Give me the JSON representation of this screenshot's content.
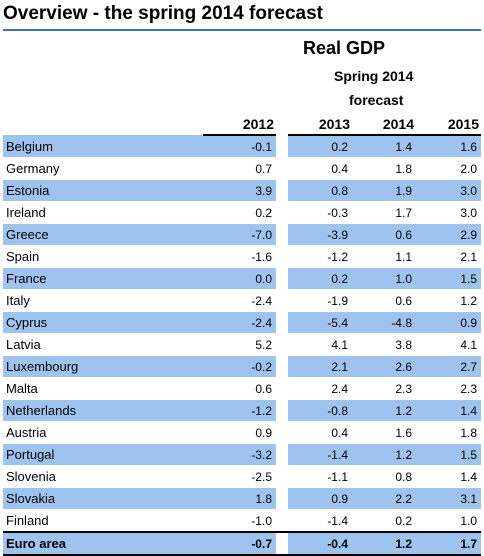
{
  "title": "Overview - the spring 2014 forecast",
  "section_title": "Real GDP",
  "forecast_label_line1": "Spring 2014",
  "forecast_label_line2": "forecast",
  "columns": [
    "2012",
    "2013",
    "2014",
    "2015"
  ],
  "colors": {
    "row_shade": "#9ec3ef",
    "title_rule": "#3f6fb5"
  },
  "rows": [
    {
      "country": "Belgium",
      "values": [
        "-0.1",
        "0.2",
        "1.4",
        "1.6"
      ],
      "shaded": true
    },
    {
      "country": "Germany",
      "values": [
        "0.7",
        "0.4",
        "1.8",
        "2.0"
      ],
      "shaded": false
    },
    {
      "country": "Estonia",
      "values": [
        "3.9",
        "0.8",
        "1.9",
        "3.0"
      ],
      "shaded": true
    },
    {
      "country": "Ireland",
      "values": [
        "0.2",
        "-0.3",
        "1.7",
        "3.0"
      ],
      "shaded": false
    },
    {
      "country": "Greece",
      "values": [
        "-7.0",
        "-3.9",
        "0.6",
        "2.9"
      ],
      "shaded": true
    },
    {
      "country": "Spain",
      "values": [
        "-1.6",
        "-1.2",
        "1.1",
        "2.1"
      ],
      "shaded": false
    },
    {
      "country": "France",
      "values": [
        "0.0",
        "0.2",
        "1.0",
        "1.5"
      ],
      "shaded": true
    },
    {
      "country": "Italy",
      "values": [
        "-2.4",
        "-1.9",
        "0.6",
        "1.2"
      ],
      "shaded": false
    },
    {
      "country": "Cyprus",
      "values": [
        "-2.4",
        "-5.4",
        "-4.8",
        "0.9"
      ],
      "shaded": true
    },
    {
      "country": "Latvia",
      "values": [
        "5.2",
        "4.1",
        "3.8",
        "4.1"
      ],
      "shaded": false
    },
    {
      "country": "Luxembourg",
      "values": [
        "-0.2",
        "2.1",
        "2.6",
        "2.7"
      ],
      "shaded": true
    },
    {
      "country": "Malta",
      "values": [
        "0.6",
        "2.4",
        "2.3",
        "2.3"
      ],
      "shaded": false
    },
    {
      "country": "Netherlands",
      "values": [
        "-1.2",
        "-0.8",
        "1.2",
        "1.4"
      ],
      "shaded": true
    },
    {
      "country": "Austria",
      "values": [
        "0.9",
        "0.4",
        "1.6",
        "1.8"
      ],
      "shaded": false
    },
    {
      "country": "Portugal",
      "values": [
        "-3.2",
        "-1.4",
        "1.2",
        "1.5"
      ],
      "shaded": true
    },
    {
      "country": "Slovenia",
      "values": [
        "-2.5",
        "-1.1",
        "0.8",
        "1.4"
      ],
      "shaded": false
    },
    {
      "country": "Slovakia",
      "values": [
        "1.8",
        "0.9",
        "2.2",
        "3.1"
      ],
      "shaded": true
    },
    {
      "country": "Finland",
      "values": [
        "-1.0",
        "-1.4",
        "0.2",
        "1.0"
      ],
      "shaded": false
    }
  ],
  "total": {
    "country": "Euro area",
    "values": [
      "-0.7",
      "-0.4",
      "1.2",
      "1.7"
    ]
  }
}
